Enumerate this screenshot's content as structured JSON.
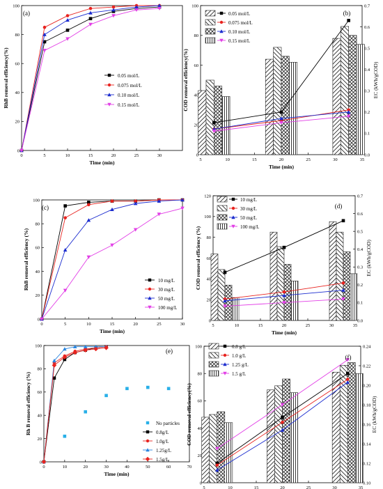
{
  "figure": {
    "panels": [
      "a",
      "b",
      "c",
      "d",
      "e",
      "f"
    ]
  },
  "chart_data": [
    {
      "panel": "a",
      "type": "line",
      "xlabel": "Time (min)",
      "ylabel": "RhB removal efficiency(%)",
      "xlim": [
        0,
        35
      ],
      "ylim": [
        0,
        100
      ],
      "xticks": [
        0,
        5,
        10,
        15,
        20,
        25,
        30
      ],
      "yticks": [
        0,
        20,
        40,
        60,
        80,
        100
      ],
      "legend_position": "center-right",
      "x": [
        0,
        5,
        10,
        15,
        20,
        25,
        30
      ],
      "series": [
        {
          "name": "0.05 mol/L",
          "color": "#000000",
          "marker": "square",
          "values": [
            0,
            75,
            83,
            91,
            96,
            98,
            99
          ]
        },
        {
          "name": "0.075 mol/L",
          "color": "#e8231f",
          "marker": "circle",
          "values": [
            0,
            85,
            93,
            98,
            99,
            100,
            100
          ]
        },
        {
          "name": "0.10 mol/L",
          "color": "#1b2ccf",
          "marker": "triangle",
          "values": [
            0,
            80,
            90,
            95,
            97,
            99,
            100
          ]
        },
        {
          "name": "0.15 mol/L",
          "color": "#e23fe6",
          "marker": "tri-down",
          "values": [
            0,
            69,
            77,
            87,
            93,
            97,
            98
          ]
        }
      ]
    },
    {
      "panel": "b",
      "type": "bar",
      "xlabel": "Time (min)",
      "ylabel": "COD removal efficiency(%)",
      "y2label": "EC (kWh/gCOD)",
      "xlim": [
        5,
        35
      ],
      "ylim": [
        0,
        100
      ],
      "y2lim": [
        0,
        0.7
      ],
      "xticks": [
        5,
        10,
        15,
        20,
        25,
        30,
        35
      ],
      "yticks": [
        0,
        20,
        40,
        60,
        80,
        100
      ],
      "y2ticks": [
        0.0,
        0.1,
        0.2,
        0.3,
        0.4,
        0.5,
        0.6,
        0.7
      ],
      "legend_position": "top-left",
      "categories": [
        7.5,
        20,
        32.5
      ],
      "series": [
        {
          "name": "0.05 mol/L",
          "color": "#000000",
          "marker": "square",
          "values": [
            43,
            64,
            78
          ],
          "ec": [
            0.15,
            0.2,
            0.63
          ]
        },
        {
          "name": "0.075 mol/L",
          "color": "#e8231f",
          "marker": "circle",
          "values": [
            50,
            72,
            86
          ],
          "ec": [
            0.12,
            0.16,
            0.21
          ]
        },
        {
          "name": "0.10 mol/L",
          "color": "#1b2ccf",
          "marker": "triangle",
          "values": [
            46,
            66,
            80
          ],
          "ec": [
            0.12,
            0.17,
            0.2
          ]
        },
        {
          "name": "0.15 mol/L",
          "color": "#e23fe6",
          "marker": "tri-down",
          "values": [
            39,
            62,
            74
          ],
          "ec": [
            0.11,
            0.15,
            0.18
          ]
        }
      ]
    },
    {
      "panel": "c",
      "type": "line",
      "xlabel": "Time (min)",
      "ylabel": "RhB removal efficiency (%)",
      "xlim": [
        0,
        30
      ],
      "ylim": [
        0,
        100
      ],
      "xticks": [
        0,
        5,
        10,
        15,
        20,
        25,
        30
      ],
      "yticks": [
        0,
        20,
        40,
        60,
        80,
        100
      ],
      "legend_position": "bottom-right",
      "x": [
        0,
        5,
        10,
        15,
        20,
        25,
        30
      ],
      "series": [
        {
          "name": "10 mg/L",
          "color": "#000000",
          "marker": "square",
          "values": [
            0,
            95,
            98,
            99,
            99,
            100,
            100
          ]
        },
        {
          "name": "30 mg/L",
          "color": "#e8231f",
          "marker": "circle",
          "values": [
            0,
            85,
            96,
            99,
            99,
            100,
            100
          ]
        },
        {
          "name": "50 mg/L",
          "color": "#1b2ccf",
          "marker": "triangle",
          "values": [
            0,
            58,
            83,
            92,
            97,
            99,
            100
          ]
        },
        {
          "name": "100 mg/L",
          "color": "#e23fe6",
          "marker": "tri-down",
          "values": [
            0,
            24,
            52,
            62,
            75,
            88,
            93
          ]
        }
      ]
    },
    {
      "panel": "d",
      "type": "bar",
      "xlabel": "Time (min)",
      "ylabel": "COD removal efficiency (%)",
      "y2label": "EC (kWh/gCOD)",
      "xlim": [
        5,
        35
      ],
      "ylim": [
        0,
        120
      ],
      "y2lim": [
        0,
        0.7
      ],
      "xticks": [
        5,
        10,
        15,
        20,
        25,
        30,
        35
      ],
      "yticks": [
        0,
        20,
        40,
        60,
        80,
        100,
        120
      ],
      "y2ticks": [
        0.0,
        0.1,
        0.2,
        0.3,
        0.4,
        0.5,
        0.6,
        0.7
      ],
      "legend_position": "top-left",
      "categories": [
        7.5,
        20,
        32.5
      ],
      "series": [
        {
          "name": "10 mg/L",
          "color": "#000000",
          "marker": "square",
          "values": [
            64,
            85,
            95
          ],
          "ec": [
            0.27,
            0.41,
            0.56
          ]
        },
        {
          "name": "30 mg/L",
          "color": "#e8231f",
          "marker": "circle",
          "values": [
            49,
            71,
            85
          ],
          "ec": [
            0.12,
            0.16,
            0.21
          ]
        },
        {
          "name": "50 mg/L",
          "color": "#1b2ccf",
          "marker": "triangle",
          "values": [
            34,
            54,
            66
          ],
          "ec": [
            0.11,
            0.14,
            0.17
          ]
        },
        {
          "name": "100 mg/L",
          "color": "#e23fe6",
          "marker": "tri-down",
          "values": [
            22,
            38,
            45
          ],
          "ec": [
            0.08,
            0.1,
            0.12
          ]
        }
      ]
    },
    {
      "panel": "e",
      "type": "scatter",
      "xlabel": "Time (min)",
      "ylabel": "Rh B removal efficiency (%)",
      "xlim": [
        0,
        70
      ],
      "ylim": [
        0,
        100
      ],
      "xticks": [
        0,
        10,
        20,
        30,
        40,
        50,
        60,
        70
      ],
      "yticks": [
        0,
        20,
        40,
        60,
        80,
        100
      ],
      "legend_position": "bottom-right",
      "series": [
        {
          "name": "No particles",
          "color": "#29b0e8",
          "marker": "square",
          "line": false,
          "x": [
            0,
            10,
            20,
            30,
            40,
            50,
            60
          ],
          "values": [
            0,
            22,
            43,
            57,
            63,
            64,
            63
          ]
        },
        {
          "name": "0.8g/L",
          "color": "#000000",
          "marker": "square",
          "line": true,
          "x": [
            0,
            5,
            10,
            15,
            20,
            25,
            30
          ],
          "values": [
            0,
            72,
            88,
            94,
            96,
            98,
            99
          ]
        },
        {
          "name": "1.0g/L",
          "color": "#e8231f",
          "marker": "circle",
          "line": true,
          "x": [
            0,
            5,
            10,
            15,
            20,
            25,
            30
          ],
          "values": [
            0,
            85,
            91,
            95,
            97,
            98,
            99
          ]
        },
        {
          "name": "1.25g/L",
          "color": "#2a86e0",
          "marker": "triangle",
          "line": true,
          "x": [
            0,
            5,
            10,
            15,
            20,
            25,
            30
          ],
          "values": [
            0,
            87,
            97,
            99,
            99,
            99,
            99
          ]
        },
        {
          "name": "1.5g/L",
          "color": "#e8231f",
          "marker": "diamond",
          "line": true,
          "x": [
            0,
            5,
            10,
            15,
            20,
            25,
            30
          ],
          "values": [
            0,
            83,
            90,
            94,
            96,
            97,
            98
          ]
        }
      ]
    },
    {
      "panel": "f",
      "type": "bar",
      "xlabel": "Time (min)",
      "ylabel": "COD removal efficiency(%)",
      "y2label": "EC (kWh/gCOD)",
      "xlim": [
        5,
        35
      ],
      "ylim": [
        0,
        100
      ],
      "y2lim": [
        0.1,
        0.24
      ],
      "xticks": [
        5,
        10,
        15,
        20,
        25,
        30,
        35
      ],
      "yticks": [
        0,
        20,
        40,
        60,
        80,
        100
      ],
      "y2ticks": [
        0.1,
        0.12,
        0.14,
        0.16,
        0.18,
        0.2,
        0.22,
        0.24
      ],
      "legend_position": "top-left",
      "categories": [
        7.5,
        20,
        32.5
      ],
      "series": [
        {
          "name": "0.8 g/L",
          "color": "#000000",
          "marker": "square",
          "values": [
            48,
            68,
            81
          ],
          "ec": [
            0.12,
            0.167,
            0.212
          ]
        },
        {
          "name": "1.0 g/L",
          "color": "#e8231f",
          "marker": "circle",
          "values": [
            50,
            71,
            86
          ],
          "ec": [
            0.118,
            0.162,
            0.206
          ]
        },
        {
          "name": "1.25 g/L",
          "color": "#1b2ccf",
          "marker": "triangle",
          "values": [
            52,
            76,
            88
          ],
          "ec": [
            0.113,
            0.154,
            0.203
          ]
        },
        {
          "name": "1.5 g/L",
          "color": "#e23fe6",
          "marker": "tri-down",
          "values": [
            44,
            66,
            80
          ],
          "ec": [
            0.135,
            0.18,
            0.226
          ]
        }
      ]
    }
  ]
}
